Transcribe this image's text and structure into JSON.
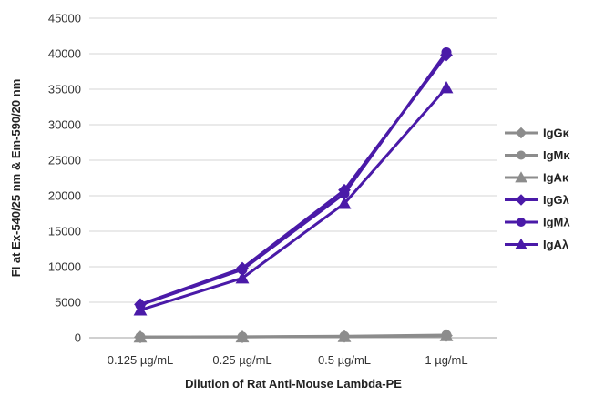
{
  "chart_data": {
    "type": "line",
    "title": "",
    "xlabel": "Dilution of Rat Anti-Mouse Lambda-PE",
    "ylabel": "FI at Ex-540/25 nm & Em-590/20 nm",
    "categories": [
      "0.125 µg/mL",
      "0.25 µg/mL",
      "0.5 µg/mL",
      "1 µg/mL"
    ],
    "ylim": [
      0,
      45000
    ],
    "yticks": [
      0,
      5000,
      10000,
      15000,
      20000,
      25000,
      30000,
      35000,
      40000,
      45000
    ],
    "grid": true,
    "legend_position": "right",
    "series": [
      {
        "name": "IgGκ",
        "values": [
          100,
          120,
          180,
          300
        ],
        "color": "#8c8c8c",
        "marker": "diamond"
      },
      {
        "name": "IgMκ",
        "values": [
          120,
          150,
          220,
          380
        ],
        "color": "#8c8c8c",
        "marker": "circle"
      },
      {
        "name": "IgAκ",
        "values": [
          90,
          110,
          160,
          280
        ],
        "color": "#8c8c8c",
        "marker": "triangle"
      },
      {
        "name": "IgGλ",
        "values": [
          4700,
          9800,
          20800,
          39800
        ],
        "color": "#4a1aa8",
        "marker": "diamond"
      },
      {
        "name": "IgMλ",
        "values": [
          4600,
          9600,
          20300,
          40200
        ],
        "color": "#4a1aa8",
        "marker": "circle"
      },
      {
        "name": "IgAλ",
        "values": [
          3900,
          8400,
          18900,
          35200
        ],
        "color": "#4a1aa8",
        "marker": "triangle"
      }
    ]
  }
}
